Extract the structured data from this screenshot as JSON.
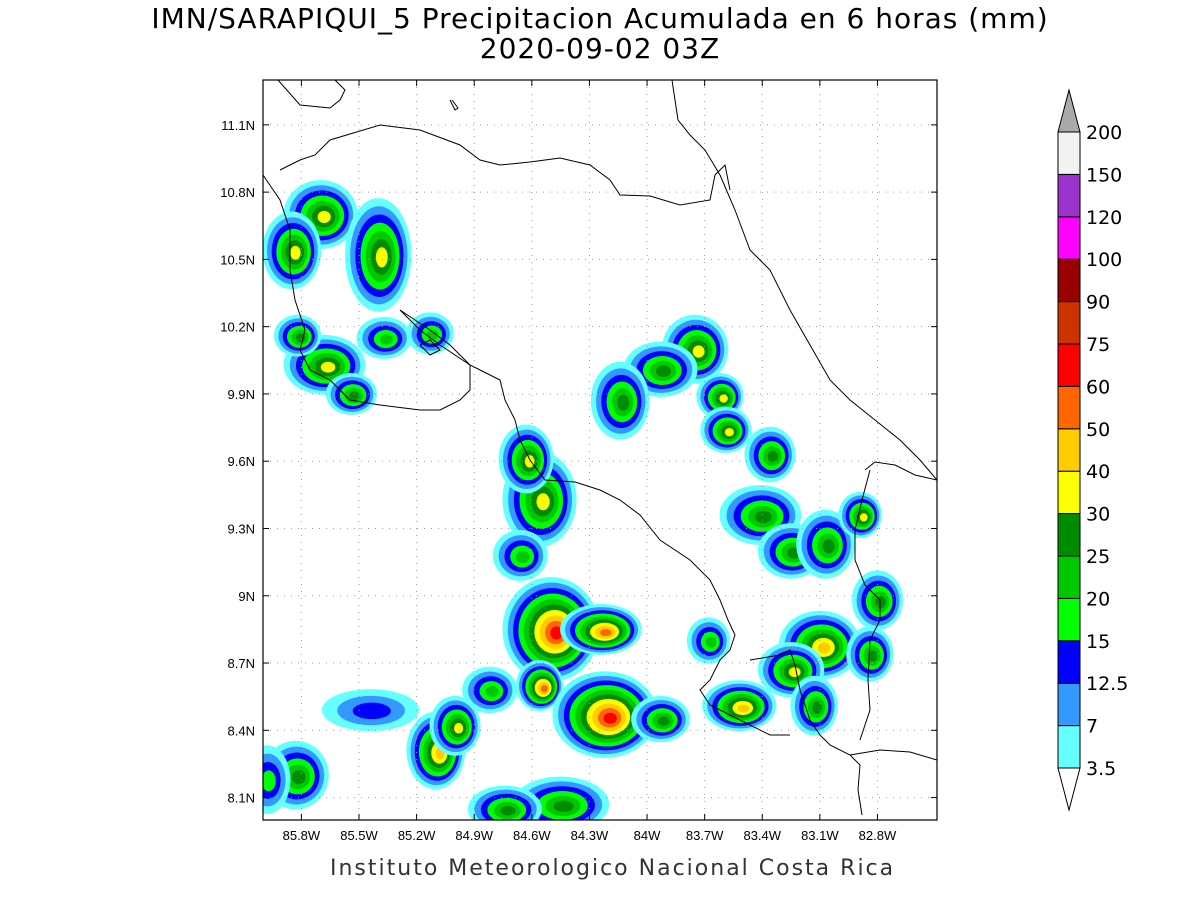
{
  "title": {
    "line1": "IMN/SARAPIQUI_5 Precipitacion Acumulada en 6 horas (mm)",
    "line2": "2020-09-02 03Z"
  },
  "footer": "Instituto Meteorologico Nacional Costa Rica",
  "map": {
    "lon_range": [
      -86.0,
      -82.49
    ],
    "lat_range": [
      8.0,
      11.3
    ],
    "grid": true,
    "lon_ticks": [
      {
        "v": -85.8,
        "label": "85.8W"
      },
      {
        "v": -85.5,
        "label": "85.5W"
      },
      {
        "v": -85.2,
        "label": "85.2W"
      },
      {
        "v": -84.9,
        "label": "84.9W"
      },
      {
        "v": -84.6,
        "label": "84.6W"
      },
      {
        "v": -84.3,
        "label": "84.3W"
      },
      {
        "v": -84.0,
        "label": "84W"
      },
      {
        "v": -83.7,
        "label": "83.7W"
      },
      {
        "v": -83.4,
        "label": "83.4W"
      },
      {
        "v": -83.1,
        "label": "83.1W"
      },
      {
        "v": -82.8,
        "label": "82.8W"
      }
    ],
    "lat_ticks": [
      {
        "v": 8.1,
        "label": "8.1N"
      },
      {
        "v": 8.4,
        "label": "8.4N"
      },
      {
        "v": 8.7,
        "label": "8.7N"
      },
      {
        "v": 9.0,
        "label": "9N"
      },
      {
        "v": 9.3,
        "label": "9.3N"
      },
      {
        "v": 9.6,
        "label": "9.6N"
      },
      {
        "v": 9.9,
        "label": "9.9N"
      },
      {
        "v": 10.2,
        "label": "10.2N"
      },
      {
        "v": 10.5,
        "label": "10.5N"
      },
      {
        "v": 10.8,
        "label": "10.8N"
      },
      {
        "v": 11.1,
        "label": "11.1N"
      }
    ]
  },
  "colorbar": {
    "levels": [
      "3.5",
      "7",
      "12.5",
      "15",
      "20",
      "25",
      "30",
      "40",
      "50",
      "60",
      "75",
      "90",
      "100",
      "120",
      "150",
      "200"
    ],
    "colors": [
      "#66ffff",
      "#3399ff",
      "#0000ff",
      "#00ff00",
      "#00c800",
      "#008c00",
      "#ffff00",
      "#ffcc00",
      "#ff6600",
      "#ff0000",
      "#cc3300",
      "#990000",
      "#ff00ff",
      "#9933cc",
      "#f2f2f2"
    ],
    "over_color": "#aaaaaa",
    "under_color": "#ffffff"
  },
  "precip_cells": [
    [
      -85.7,
      10.7,
      0.12,
      0.1,
      35
    ],
    [
      -85.85,
      10.54,
      0.08,
      0.12,
      30
    ],
    [
      -85.4,
      10.52,
      0.1,
      0.2,
      30
    ],
    [
      -85.68,
      10.03,
      0.14,
      0.08,
      35
    ],
    [
      -85.54,
      9.9,
      0.06,
      0.04,
      25
    ],
    [
      -85.82,
      10.16,
      0.05,
      0.04,
      25
    ],
    [
      -85.37,
      10.15,
      0.07,
      0.04,
      20
    ],
    [
      -85.13,
      10.17,
      0.05,
      0.04,
      20
    ],
    [
      -84.56,
      9.43,
      0.12,
      0.16,
      35
    ],
    [
      -84.63,
      9.61,
      0.07,
      0.1,
      30
    ],
    [
      -84.66,
      9.18,
      0.07,
      0.06,
      20
    ],
    [
      -84.5,
      8.85,
      0.18,
      0.18,
      60
    ],
    [
      -84.24,
      8.85,
      0.14,
      0.06,
      50
    ],
    [
      -84.56,
      8.6,
      0.05,
      0.06,
      50
    ],
    [
      -84.22,
      8.47,
      0.2,
      0.14,
      60
    ],
    [
      -83.93,
      8.45,
      0.08,
      0.05,
      25
    ],
    [
      -85.1,
      8.31,
      0.08,
      0.12,
      40
    ],
    [
      -85.0,
      8.42,
      0.06,
      0.08,
      35
    ],
    [
      -85.83,
      8.2,
      0.1,
      0.1,
      25
    ],
    [
      -85.98,
      8.18,
      0.05,
      0.1,
      18
    ],
    [
      -84.45,
      8.07,
      0.18,
      0.07,
      25
    ],
    [
      -84.74,
      8.05,
      0.12,
      0.05,
      25
    ],
    [
      -83.75,
      10.1,
      0.1,
      0.1,
      35
    ],
    [
      -83.93,
      10.01,
      0.12,
      0.07,
      25
    ],
    [
      -84.14,
      9.87,
      0.08,
      0.12,
      25
    ],
    [
      -83.62,
      9.89,
      0.05,
      0.05,
      30
    ],
    [
      -83.59,
      9.74,
      0.06,
      0.05,
      30
    ],
    [
      -83.36,
      9.63,
      0.06,
      0.07,
      25
    ],
    [
      -83.41,
      9.36,
      0.14,
      0.08,
      25
    ],
    [
      -83.25,
      9.2,
      0.1,
      0.07,
      25
    ],
    [
      -83.07,
      9.23,
      0.08,
      0.1,
      25
    ],
    [
      -82.89,
      9.36,
      0.04,
      0.05,
      35
    ],
    [
      -82.8,
      8.98,
      0.06,
      0.08,
      25
    ],
    [
      -83.1,
      8.78,
      0.14,
      0.1,
      40
    ],
    [
      -83.25,
      8.67,
      0.1,
      0.07,
      35
    ],
    [
      -82.84,
      8.74,
      0.05,
      0.07,
      25
    ],
    [
      -83.52,
      8.51,
      0.12,
      0.06,
      40
    ],
    [
      -83.13,
      8.51,
      0.05,
      0.08,
      25
    ],
    [
      -83.68,
      8.8,
      0.04,
      0.05,
      20
    ],
    [
      -84.82,
      8.58,
      0.07,
      0.05,
      20
    ],
    [
      -85.44,
      8.49,
      0.18,
      0.04,
      12.5
    ]
  ]
}
